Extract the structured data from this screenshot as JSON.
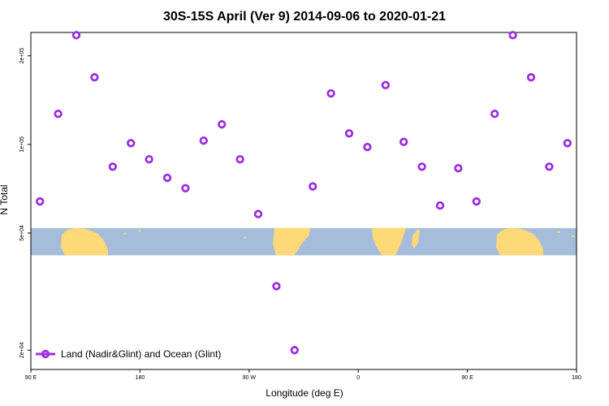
{
  "chart_data": {
    "type": "scatter",
    "title": "30S-15S April (Ver 9)   2014-09-06 to 2020-01-21",
    "xlabel": "Longitude (deg E)",
    "ylabel": "N Total",
    "x_ticks": [
      "90 E",
      "180",
      "90 W",
      "0",
      "90 E",
      "180"
    ],
    "x_tick_values": [
      90,
      180,
      270,
      360,
      450,
      540
    ],
    "xlim": [
      90,
      540
    ],
    "y_ticks": [
      "2e+04",
      "5e+04",
      "1e+05",
      "2e+05"
    ],
    "y_tick_values": [
      20000,
      50000,
      100000,
      200000
    ],
    "ylim": [
      17200,
      240000
    ],
    "y_scale": "log",
    "grid": false,
    "legend": {
      "position": "bottom-left",
      "entries": [
        "Land (Nadir&Glint) and Ocean (Glint)"
      ]
    },
    "series": [
      {
        "name": "Land (Nadir&Glint) and Ocean (Glint)",
        "color": "#9b30e0",
        "marker": "open-circle",
        "points": [
          {
            "x": 97.5,
            "y": 64000
          },
          {
            "x": 112.5,
            "y": 127000
          },
          {
            "x": 127.5,
            "y": 235000
          },
          {
            "x": 142.5,
            "y": 169000
          },
          {
            "x": 157.5,
            "y": 84000
          },
          {
            "x": 172.5,
            "y": 101000
          },
          {
            "x": 187.5,
            "y": 89000
          },
          {
            "x": 202.5,
            "y": 77000
          },
          {
            "x": 217.5,
            "y": 71000
          },
          {
            "x": 232.5,
            "y": 103000
          },
          {
            "x": 247.5,
            "y": 117000
          },
          {
            "x": 262.5,
            "y": 89000
          },
          {
            "x": 277.5,
            "y": 58000
          },
          {
            "x": 292.5,
            "y": 33000
          },
          {
            "x": 307.5,
            "y": 20000
          },
          {
            "x": 322.5,
            "y": 72000
          },
          {
            "x": 337.5,
            "y": 149000
          },
          {
            "x": 352.5,
            "y": 109000
          },
          {
            "x": 367.5,
            "y": 98000
          },
          {
            "x": 382.5,
            "y": 159000
          },
          {
            "x": 397.5,
            "y": 102000
          },
          {
            "x": 412.5,
            "y": 84000
          },
          {
            "x": 427.5,
            "y": 62000
          },
          {
            "x": 442.5,
            "y": 83000
          },
          {
            "x": 457.5,
            "y": 64000
          },
          {
            "x": 472.5,
            "y": 127000
          },
          {
            "x": 487.5,
            "y": 235000
          },
          {
            "x": 502.5,
            "y": 169000
          },
          {
            "x": 517.5,
            "y": 84000
          },
          {
            "x": 532.5,
            "y": 101000
          }
        ]
      }
    ],
    "map_band": {
      "y_range": [
        42000,
        52000
      ],
      "ocean_color": "#a6bcdb",
      "land_color": "#fdd978"
    }
  }
}
